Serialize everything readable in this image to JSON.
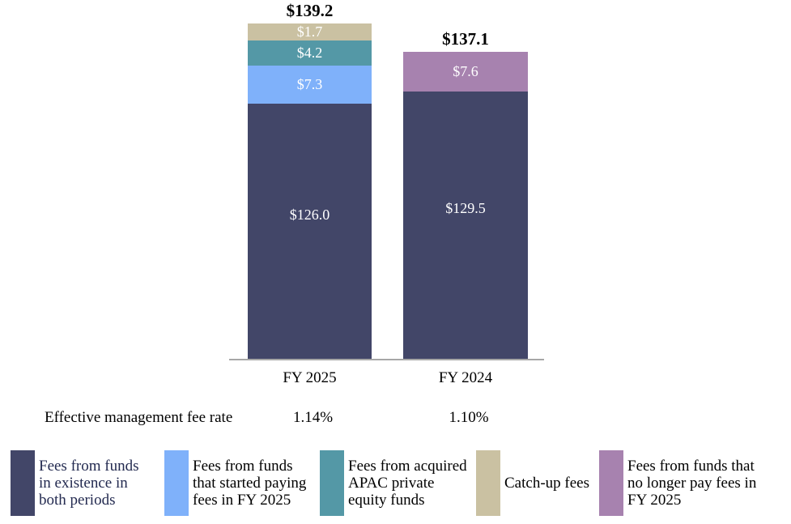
{
  "chart_data": {
    "type": "bar",
    "stacked": true,
    "orientation": "vertical",
    "title": "",
    "unit": "$",
    "categories": [
      "FY 2025",
      "FY 2024"
    ],
    "totals": [
      139.2,
      137.1
    ],
    "total_labels": [
      "$139.2",
      "$137.1"
    ],
    "series": [
      {
        "name": "Fees from funds in existence in both periods",
        "color": "#424668",
        "values": [
          126.0,
          129.5
        ],
        "value_labels": [
          "$126.0",
          "$129.5"
        ]
      },
      {
        "name": "Fees from funds that started paying fees in FY 2025",
        "color": "#7FB1FA",
        "values": [
          7.3,
          0
        ],
        "value_labels": [
          "$7.3",
          ""
        ]
      },
      {
        "name": "Fees from acquired APAC private equity funds",
        "color": "#5498A6",
        "values": [
          4.2,
          0
        ],
        "value_labels": [
          "$4.2",
          ""
        ]
      },
      {
        "name": "Catch-up fees",
        "color": "#CAC1A2",
        "values": [
          1.7,
          0
        ],
        "value_labels": [
          "$1.7",
          ""
        ]
      },
      {
        "name": "Fees from funds that no longer pay fees in FY 2025",
        "color": "#A782AF",
        "values": [
          0,
          7.6
        ],
        "value_labels": [
          "",
          "$7.6"
        ]
      }
    ],
    "gridlines": false,
    "y_axis_visible": false,
    "value_label_color": "#FFFFFF",
    "axis_line_color": "#A7A7A7",
    "legend_position": "bottom"
  },
  "fee_rate_row": {
    "label": "Effective management fee rate",
    "values": [
      "1.14%",
      "1.10%"
    ]
  },
  "legend": {
    "items": [
      {
        "label": "Fees from funds in existence in both periods",
        "lines": [
          "Fees from funds",
          "in existence in",
          "both periods"
        ],
        "color": "#424668",
        "text_color": "#232A50"
      },
      {
        "label": "Fees from funds that started paying fees in FY 2025",
        "lines": [
          "Fees from funds",
          "that started paying",
          "fees in FY 2025"
        ],
        "color": "#7FB1FA",
        "text_color": "#000000"
      },
      {
        "label": "Fees from acquired APAC private equity funds",
        "lines": [
          "Fees from acquired",
          "APAC private",
          "equity funds"
        ],
        "color": "#5498A6",
        "text_color": "#000000"
      },
      {
        "label": "Catch-up fees",
        "lines": [
          "Catch-up fees"
        ],
        "color": "#CAC1A2",
        "text_color": "#000000"
      },
      {
        "label": "Fees from funds that no longer pay fees in FY 2025",
        "lines": [
          "Fees from funds that",
          "no longer pay fees in",
          "FY 2025"
        ],
        "color": "#A782AF",
        "text_color": "#000000"
      }
    ]
  }
}
